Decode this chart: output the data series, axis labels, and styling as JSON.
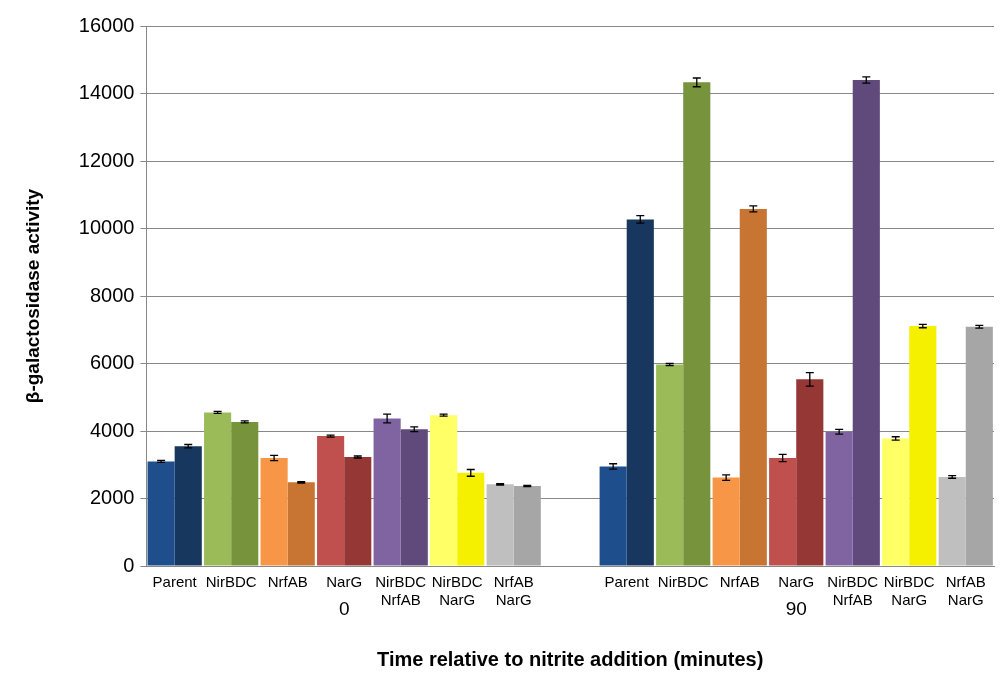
{
  "chart_data": {
    "type": "bar",
    "xlabel": "Time relative to nitrite addition (minutes)",
    "ylabel": "β-galactosidase activity",
    "categories": [
      "Parent",
      "NirBDC",
      "NrfAB",
      "NarG",
      "NirBDC\nNrfAB",
      "NirBDC\nNarG",
      "NrfAB\nNarG",
      null,
      "Parent",
      "NirBDC",
      "NrfAB",
      "NarG",
      "NirBDC\nNrfAB",
      "NirBDC\nNarG",
      "NrfAB\nNarG"
    ],
    "series": [
      {
        "colors": [
          "#1f4e8c",
          "#9bbb59",
          "#f79646",
          "#c0504d",
          "#8064a2",
          "#ffff66",
          "#bfbfbf",
          "#000000",
          "#1f4e8c",
          "#9bbb59",
          "#f79646",
          "#c0504d",
          "#8064a2",
          "#ffff66",
          "#bfbfbf"
        ],
        "values": [
          3100,
          4550,
          3200,
          3850,
          4370,
          4470,
          2420,
          null,
          2950,
          5970,
          2620,
          3200,
          3980,
          3780,
          2640
        ],
        "errors": [
          30,
          30,
          80,
          30,
          130,
          30,
          20,
          null,
          80,
          30,
          80,
          110,
          70,
          50,
          40
        ]
      },
      {
        "colors": [
          "#17375e",
          "#77933c",
          "#c87533",
          "#953735",
          "#604a7b",
          "#f5f000",
          "#a6a6a6",
          "#000000",
          "#17375e",
          "#77933c",
          "#c87533",
          "#953735",
          "#604a7b",
          "#f5f000",
          "#a6a6a6"
        ],
        "values": [
          3550,
          4270,
          2480,
          3230,
          4050,
          2760,
          2370,
          null,
          10270,
          14330,
          10580,
          5530,
          14400,
          7110,
          7090
        ],
        "errors": [
          50,
          30,
          20,
          30,
          70,
          100,
          20,
          null,
          110,
          130,
          90,
          200,
          90,
          50,
          40
        ]
      }
    ],
    "annotations": [
      "0",
      "90"
    ],
    "ylim": [
      0,
      16000
    ],
    "yticks": [
      0,
      2000,
      4000,
      6000,
      8000,
      10000,
      12000,
      14000,
      16000
    ],
    "grid": "y",
    "legend": false
  }
}
